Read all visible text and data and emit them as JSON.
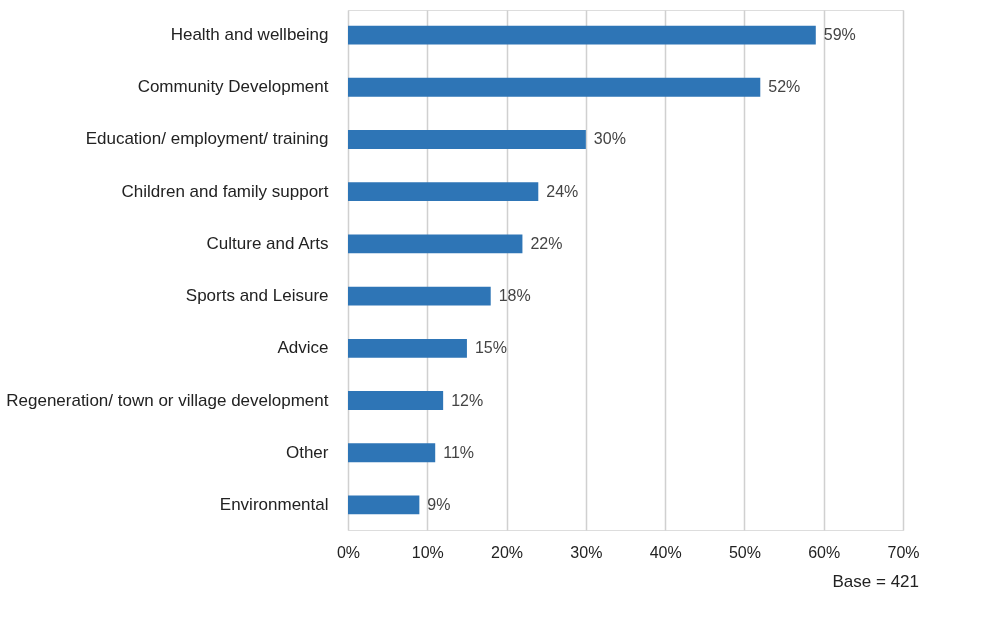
{
  "chart_data": {
    "type": "bar",
    "orientation": "horizontal",
    "categories": [
      "Health and wellbeing",
      "Community Development",
      "Education/ employment/ training",
      "Children and family support",
      "Culture and Arts",
      "Sports and Leisure",
      "Advice",
      "Regeneration/ town or village development",
      "Other",
      "Environmental"
    ],
    "values": [
      59,
      52,
      30,
      24,
      22,
      18,
      15,
      12,
      11,
      9
    ],
    "value_labels": [
      "59%",
      "52%",
      "30%",
      "24%",
      "22%",
      "18%",
      "15%",
      "12%",
      "11%",
      "9%"
    ],
    "color": "#2e75b6",
    "xlim": [
      0,
      70
    ],
    "xticks": [
      {
        "value": 0,
        "label": "0%"
      },
      {
        "value": 10,
        "label": "10%"
      },
      {
        "value": 20,
        "label": "20%"
      },
      {
        "value": 30,
        "label": "30%"
      },
      {
        "value": 40,
        "label": "40%"
      },
      {
        "value": 50,
        "label": "50%"
      },
      {
        "value": 60,
        "label": "60%"
      },
      {
        "value": 70,
        "label": "70%"
      }
    ],
    "grid": "x",
    "annotations": [
      "Base = 421"
    ]
  }
}
